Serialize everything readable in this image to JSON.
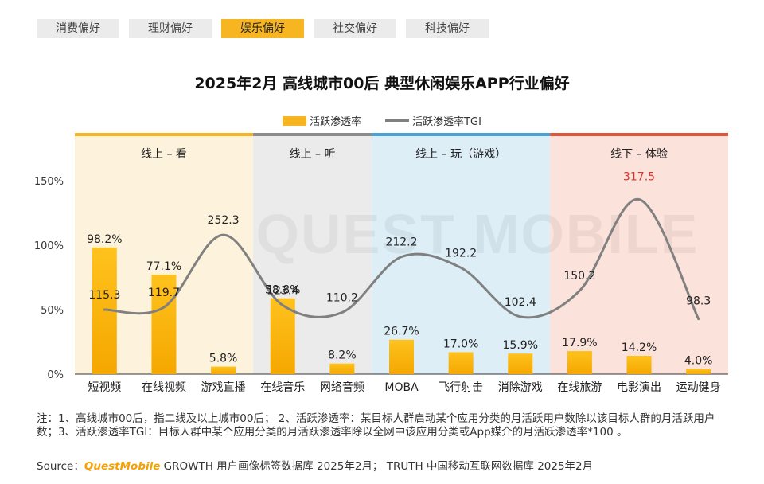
{
  "tabs": [
    {
      "label": "消费偏好",
      "active": false
    },
    {
      "label": "理财偏好",
      "active": false
    },
    {
      "label": "娱乐偏好",
      "active": true
    },
    {
      "label": "社交偏好",
      "active": false
    },
    {
      "label": "科技偏好",
      "active": false
    }
  ],
  "watermark": "QUEST MOBILE",
  "colors": {
    "bar": "#f8b522",
    "line": "#808080",
    "accent": "#f8b522"
  },
  "chart_data": {
    "type": "bar",
    "title": "2025年2月 高线城市00后 典型休闲娱乐APP行业偏好",
    "categories": [
      "短视频",
      "在线视频",
      "游戏直播",
      "在线音乐",
      "网络音频",
      "MOBA",
      "飞行射击",
      "消除游戏",
      "在线旅游",
      "电影演出",
      "运动健身"
    ],
    "series": [
      {
        "name": "活跃渗透率",
        "kind": "bar",
        "values": [
          98.2,
          77.1,
          5.8,
          58.8,
          8.2,
          26.7,
          17.0,
          15.9,
          17.9,
          14.2,
          4.0
        ],
        "labels": [
          "98.2%",
          "77.1%",
          "5.8%",
          "58.8%",
          "8.2%",
          "26.7%",
          "17.0%",
          "15.9%",
          "17.9%",
          "14.2%",
          "4.0%"
        ]
      },
      {
        "name": "活跃渗透率TGI",
        "kind": "line",
        "values": [
          115.3,
          119.7,
          252.3,
          123.4,
          110.2,
          212.2,
          192.2,
          102.4,
          150.2,
          317.5,
          98.3
        ],
        "labels": [
          "115.3",
          "119.7",
          "252.3",
          "123.4",
          "110.2",
          "212.2",
          "192.2",
          "102.4",
          "150.2",
          "317.5",
          "98.3"
        ]
      }
    ],
    "yticks": [
      "150%",
      "100%",
      "50%",
      "0%"
    ],
    "ylim": [
      0,
      165
    ],
    "groups": [
      {
        "label": "线上 – 看",
        "start": 0,
        "end": 2,
        "band": "#fdf3dc",
        "top": "#f8b522"
      },
      {
        "label": "线上 – 听",
        "start": 3,
        "end": 4,
        "band": "#ebebeb",
        "top": "#8c8c8c"
      },
      {
        "label": "线上 – 玩（游戏）",
        "start": 5,
        "end": 7,
        "band": "#ddeef7",
        "top": "#4aa3d8"
      },
      {
        "label": "线下 – 体验",
        "start": 8,
        "end": 10,
        "band": "#fbe2db",
        "top": "#e2553a"
      }
    ],
    "highlight": {
      "index": 9,
      "color": "#d9332b"
    }
  },
  "notes": "注：1、高线城市00后，指二线及以上城市00后； 2、活跃渗透率：某目标人群启动某个应用分类的月活跃用户数除以该目标人群的月活跃用户数；3、活跃渗透率TGI：目标人群中某个应用分类的月活跃渗透率除以全网中该应用分类或App媒介的月活跃渗透率*100 。",
  "source": {
    "prefix": "Source：",
    "brand": "QuestMobile",
    "text": " GROWTH 用户画像标签数据库 2025年2月； TRUTH 中国移动互联网数据库 2025年2月"
  }
}
